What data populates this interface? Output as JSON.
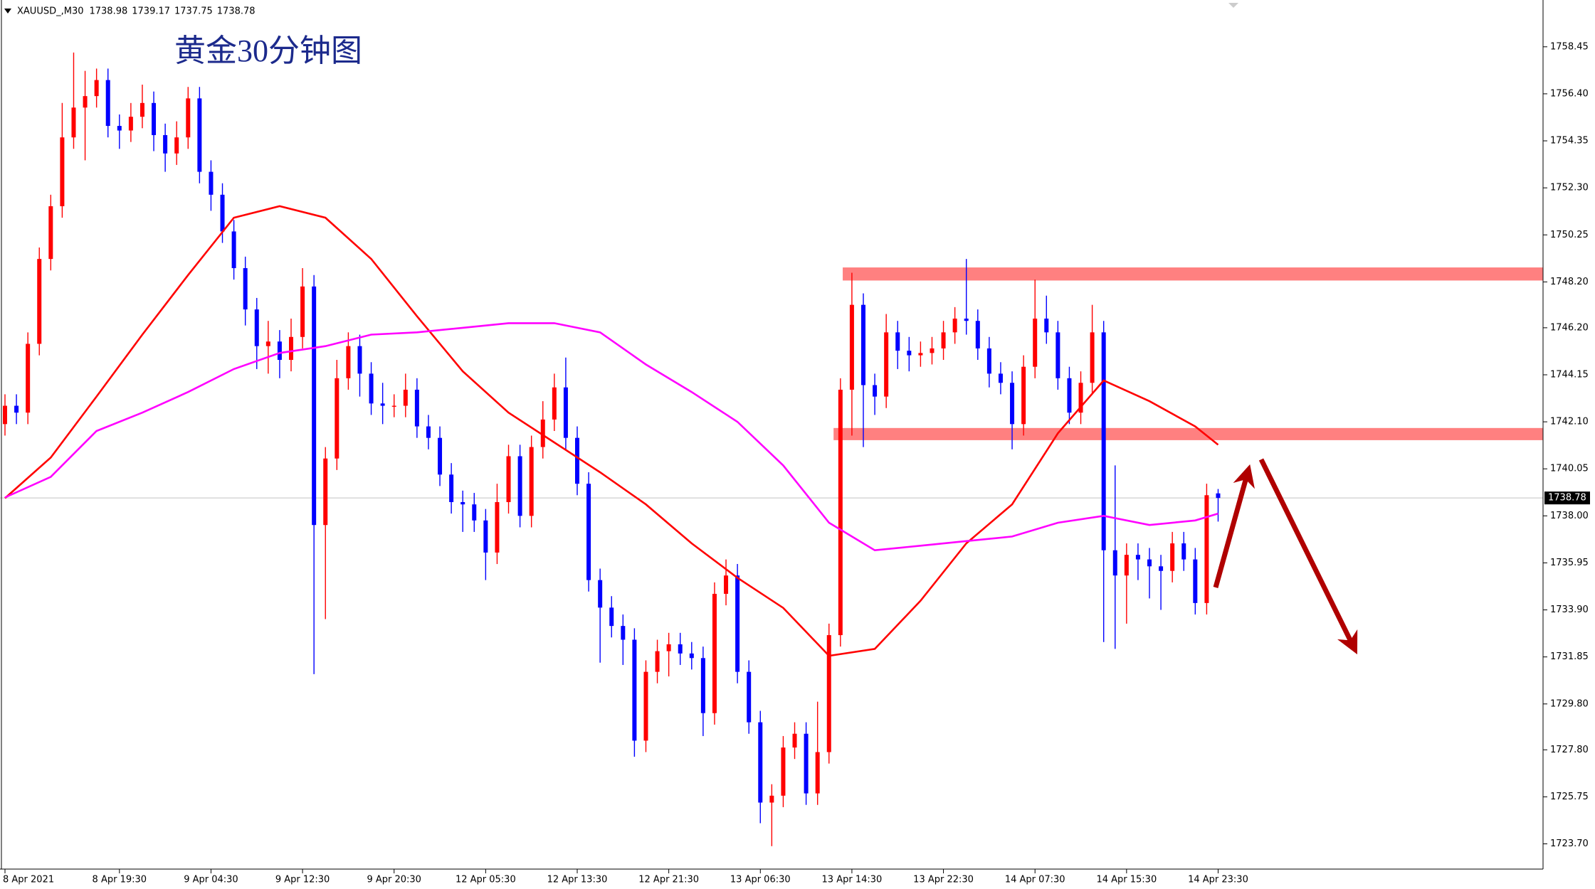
{
  "chart_data": {
    "type": "candlestick",
    "symbol": "XAUUSD_,M30",
    "title": "黄金30分钟图",
    "categories": [
      "8 Apr 2021",
      null,
      null,
      null,
      null,
      null,
      null,
      null,
      null,
      null,
      "8 Apr 19:30",
      null,
      null,
      null,
      null,
      null,
      null,
      null,
      "9 Apr 04:30",
      null,
      null,
      null,
      null,
      null,
      null,
      null,
      "9 Apr 12:30",
      null,
      null,
      null,
      null,
      null,
      null,
      null,
      "9 Apr 20:30",
      null,
      null,
      null,
      null,
      null,
      null,
      null,
      "12 Apr 05:30",
      null,
      null,
      null,
      null,
      null,
      null,
      null,
      "12 Apr 13:30",
      null,
      null,
      null,
      null,
      null,
      null,
      null,
      "12 Apr 21:30",
      null,
      null,
      null,
      null,
      null,
      null,
      null,
      "13 Apr 06:30",
      null,
      null,
      null,
      null,
      null,
      null,
      null,
      "13 Apr 14:30",
      null,
      null,
      null,
      null,
      null,
      null,
      null,
      "13 Apr 22:30",
      null,
      null,
      null,
      null,
      null,
      null,
      null,
      "14 Apr 07:30",
      null,
      null,
      null,
      null,
      null,
      null,
      null,
      "14 Apr 15:30",
      null,
      null,
      null,
      null,
      null,
      null,
      null,
      "14 Apr 23:30"
    ],
    "open": [
      1742.0,
      1742.8,
      1742.5,
      1745.5,
      1749.2,
      1751.5,
      1754.5,
      1755.8,
      1756.3,
      1757.0,
      1755.0,
      1754.8,
      1755.4,
      1756.0,
      1754.6,
      1753.8,
      1754.5,
      1756.2,
      1753.0,
      1752.0,
      1750.4,
      1748.8,
      1747.0,
      1745.4,
      1745.6,
      1744.8,
      1745.8,
      1748.0,
      1737.6,
      1740.5,
      1744.0,
      1745.4,
      1744.2,
      1742.9,
      1742.8,
      1742.8,
      1743.5,
      1741.9,
      1741.4,
      1739.8,
      1738.6,
      1738.5,
      1737.8,
      1736.4,
      1738.6,
      1740.6,
      1738.0,
      1741.0,
      1742.2,
      1743.6,
      1741.4,
      1739.4,
      1735.2,
      1734.0,
      1733.2,
      1732.6,
      1728.2,
      1731.2,
      1732.1,
      1732.4,
      1732.0,
      1731.8,
      1729.4,
      1734.6,
      1735.4,
      1731.2,
      1729.0,
      1725.5,
      1725.8,
      1727.9,
      1728.5,
      1725.9,
      1727.7,
      1732.8,
      1743.5,
      1747.2,
      1743.7,
      1743.2,
      1746.0,
      1745.2,
      1745.0,
      1745.1,
      1745.3,
      1746.0,
      1746.6,
      1746.5,
      1745.3,
      1744.2,
      1743.8,
      1742.0,
      1744.5,
      1746.6,
      1746.0,
      1744.0,
      1742.5,
      1743.8,
      1746.0,
      1736.5,
      1735.4,
      1736.3,
      1736.1,
      1735.8,
      1735.6,
      1736.8,
      1736.1,
      1734.2,
      1738.98
    ],
    "high": [
      1743.3,
      1743.3,
      1746.0,
      1749.7,
      1752.0,
      1756.0,
      1758.2,
      1757.4,
      1757.5,
      1757.5,
      1755.5,
      1756.0,
      1756.8,
      1756.5,
      1755.1,
      1755.2,
      1756.7,
      1756.7,
      1753.5,
      1752.5,
      1750.9,
      1749.3,
      1747.5,
      1746.5,
      1746.1,
      1746.6,
      1748.8,
      1748.5,
      1741.0,
      1744.8,
      1746.0,
      1745.9,
      1744.7,
      1743.8,
      1743.3,
      1744.2,
      1744.0,
      1742.4,
      1741.9,
      1740.3,
      1739.1,
      1739.0,
      1738.3,
      1739.4,
      1741.1,
      1741.1,
      1741.5,
      1743.0,
      1744.2,
      1744.9,
      1741.9,
      1739.9,
      1735.7,
      1734.5,
      1733.7,
      1733.1,
      1731.7,
      1732.6,
      1732.9,
      1732.9,
      1732.5,
      1732.3,
      1735.1,
      1736.1,
      1735.9,
      1731.7,
      1729.5,
      1726.3,
      1728.4,
      1729.0,
      1729.0,
      1729.9,
      1733.3,
      1744.0,
      1748.6,
      1747.7,
      1744.2,
      1746.8,
      1746.5,
      1745.8,
      1745.6,
      1745.8,
      1746.5,
      1747.1,
      1749.2,
      1747.0,
      1745.8,
      1744.7,
      1744.3,
      1745.0,
      1748.3,
      1747.6,
      1746.5,
      1744.5,
      1744.3,
      1747.2,
      1746.5,
      1740.2,
      1736.8,
      1736.8,
      1736.6,
      1736.3,
      1737.3,
      1737.3,
      1736.6,
      1739.4,
      1739.17
    ],
    "low": [
      1741.5,
      1742.0,
      1742.0,
      1745.0,
      1748.7,
      1751.0,
      1754.0,
      1753.5,
      1755.8,
      1754.5,
      1754.0,
      1754.3,
      1754.9,
      1753.9,
      1753.0,
      1753.3,
      1754.0,
      1752.5,
      1751.3,
      1749.9,
      1748.3,
      1746.3,
      1744.4,
      1744.2,
      1744.0,
      1744.3,
      1745.3,
      1731.1,
      1733.5,
      1740.0,
      1743.5,
      1743.2,
      1742.4,
      1742.0,
      1742.3,
      1742.3,
      1741.4,
      1740.9,
      1739.3,
      1738.1,
      1737.3,
      1737.3,
      1735.2,
      1735.9,
      1738.1,
      1737.5,
      1737.5,
      1740.5,
      1741.7,
      1740.9,
      1738.9,
      1734.7,
      1731.6,
      1732.7,
      1731.5,
      1727.5,
      1727.7,
      1730.7,
      1731.0,
      1731.5,
      1731.3,
      1728.4,
      1728.9,
      1734.1,
      1730.7,
      1728.5,
      1724.6,
      1723.6,
      1725.3,
      1727.4,
      1725.4,
      1725.4,
      1727.2,
      1732.3,
      1741.5,
      1741.0,
      1742.4,
      1742.7,
      1744.4,
      1744.3,
      1744.5,
      1744.6,
      1744.8,
      1745.5,
      1745.9,
      1744.8,
      1743.6,
      1743.3,
      1740.9,
      1741.5,
      1744.0,
      1745.5,
      1743.5,
      1742.0,
      1742.0,
      1743.3,
      1732.5,
      1732.2,
      1733.3,
      1735.2,
      1734.4,
      1733.9,
      1735.1,
      1735.6,
      1733.7,
      1733.7,
      1737.75
    ],
    "close": [
      1742.8,
      1742.5,
      1745.5,
      1749.2,
      1751.5,
      1754.5,
      1755.8,
      1756.3,
      1757.0,
      1755.0,
      1754.8,
      1755.4,
      1756.0,
      1754.6,
      1753.8,
      1754.5,
      1756.2,
      1753.0,
      1752.0,
      1750.4,
      1748.8,
      1747.0,
      1745.4,
      1745.6,
      1744.8,
      1745.8,
      1748.0,
      1737.6,
      1740.5,
      1744.0,
      1745.4,
      1744.2,
      1742.9,
      1742.8,
      1742.8,
      1743.5,
      1741.9,
      1741.4,
      1739.8,
      1738.6,
      1738.5,
      1737.8,
      1736.4,
      1738.6,
      1740.6,
      1738.0,
      1741.0,
      1742.2,
      1743.6,
      1741.4,
      1739.4,
      1735.2,
      1734.0,
      1733.2,
      1732.6,
      1728.2,
      1731.2,
      1732.1,
      1732.4,
      1732.0,
      1731.8,
      1729.4,
      1734.6,
      1735.4,
      1731.2,
      1729.0,
      1725.5,
      1725.8,
      1727.9,
      1728.5,
      1725.9,
      1727.7,
      1732.8,
      1743.5,
      1747.2,
      1743.7,
      1743.2,
      1746.0,
      1745.2,
      1745.0,
      1745.1,
      1745.3,
      1746.0,
      1746.6,
      1746.5,
      1745.3,
      1744.2,
      1743.8,
      1742.0,
      1744.5,
      1746.6,
      1746.0,
      1744.0,
      1742.5,
      1743.8,
      1746.0,
      1736.5,
      1735.4,
      1736.3,
      1736.1,
      1735.8,
      1735.6,
      1736.8,
      1736.1,
      1734.2,
      1738.9,
      1738.78
    ],
    "up_color": "#ff0000",
    "down_color": "#0000ff",
    "moving_averages": [
      {
        "color": "#ff0000",
        "x": [
          0,
          4,
          8,
          12,
          16,
          20,
          24,
          28,
          32,
          36,
          40,
          44,
          48,
          52,
          56,
          60,
          64,
          68,
          72,
          76,
          80,
          84,
          88,
          92,
          96,
          100,
          104,
          106
        ],
        "values": [
          1738.77,
          1740.54,
          1743.2,
          1745.9,
          1748.5,
          1751.0,
          1751.5,
          1751.0,
          1749.2,
          1746.7,
          1744.3,
          1742.5,
          1741.2,
          1739.9,
          1738.5,
          1736.8,
          1735.3,
          1733.99,
          1731.9,
          1732.2,
          1734.3,
          1736.8,
          1738.5,
          1741.6,
          1743.9,
          1743.0,
          1741.9,
          1741.1
        ]
      },
      {
        "color": "#ff00ff",
        "x": [
          0,
          4,
          8,
          12,
          16,
          20,
          24,
          28,
          32,
          36,
          40,
          44,
          48,
          52,
          56,
          60,
          64,
          68,
          72,
          76,
          80,
          84,
          88,
          92,
          96,
          100,
          104,
          106
        ],
        "values": [
          1738.8,
          1739.7,
          1741.7,
          1742.5,
          1743.4,
          1744.4,
          1745.1,
          1745.4,
          1745.9,
          1746.0,
          1746.2,
          1746.4,
          1746.4,
          1746.0,
          1744.6,
          1743.4,
          1742.1,
          1740.2,
          1737.7,
          1736.5,
          1736.7,
          1736.9,
          1737.1,
          1737.7,
          1738.0,
          1737.6,
          1737.8,
          1738.1
        ]
      }
    ],
    "zones": [
      {
        "start": 73.2,
        "from": 1748.83,
        "to": 1748.26,
        "color": "#ff8080"
      },
      {
        "start": 72.4,
        "from": 1741.83,
        "to": 1741.3,
        "color": "#ff8080"
      }
    ],
    "ylim": [
      1722.6,
      1760.49
    ],
    "yticks": [
      1758.45,
      {
        "value": 1756.4,
        "label": "1756.40"
      },
      1754.35,
      {
        "value": 1752.3,
        "label": "1752.30"
      },
      1750.25,
      {
        "value": 1748.2,
        "label": "1748.20"
      },
      {
        "value": 1746.2,
        "label": "1746.20"
      },
      1744.15,
      {
        "value": 1742.1,
        "label": "1742.10"
      },
      1740.05,
      {
        "value": 1738,
        "label": "1738.00"
      },
      1735.95,
      {
        "value": 1733.9,
        "label": "1733.90"
      },
      1731.85,
      {
        "value": 1729.8,
        "label": "1729.80"
      },
      {
        "value": 1727.8,
        "label": "1727.80"
      },
      1725.75,
      {
        "value": 1723.7,
        "label": "1723.70"
      }
    ]
  }
}
